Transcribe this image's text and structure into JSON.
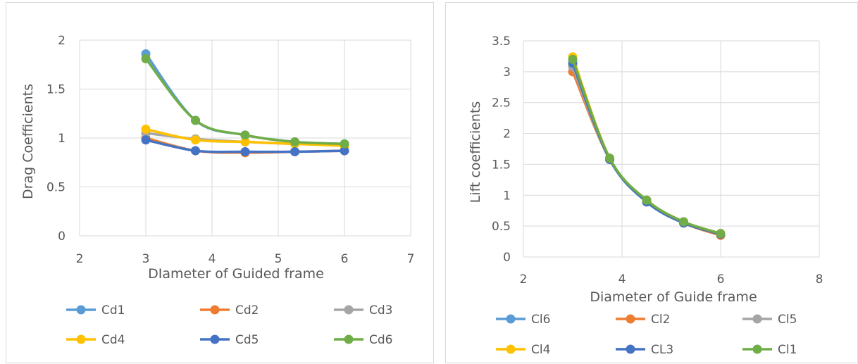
{
  "chart_data": [
    {
      "type": "scatter",
      "title": "",
      "xlabel": "DIameter of  Guided frame",
      "ylabel": "Drag Coefficients",
      "xlim": [
        2,
        7
      ],
      "ylim": [
        0,
        2
      ],
      "xticks": [
        "2",
        "3",
        "4",
        "5",
        "6",
        "7"
      ],
      "yticks": [
        "0",
        "0.5",
        "1",
        "1.5",
        "2"
      ],
      "grid": true,
      "legend_position": "bottom",
      "series": [
        {
          "name": "Cd1",
          "color": "#5B9BD5",
          "x": [
            3,
            3.75,
            4.5,
            5.25,
            6
          ],
          "y": [
            1.86,
            1.18,
            1.03,
            0.96,
            0.94
          ]
        },
        {
          "name": "Cd2",
          "color": "#ED7D31",
          "x": [
            3,
            3.75,
            4.5,
            5.25,
            6
          ],
          "y": [
            1.0,
            0.87,
            0.85,
            0.86,
            0.87
          ]
        },
        {
          "name": "Cd3",
          "color": "#A5A5A5",
          "x": [
            3,
            3.75,
            4.5,
            5.25,
            6
          ],
          "y": [
            1.05,
            0.99,
            0.96,
            0.94,
            0.93
          ]
        },
        {
          "name": "Cd4",
          "color": "#FFC000",
          "x": [
            3,
            3.75,
            4.5,
            5.25,
            6
          ],
          "y": [
            1.09,
            0.98,
            0.96,
            0.94,
            0.92
          ]
        },
        {
          "name": "Cd5",
          "color": "#4472C4",
          "x": [
            3,
            3.75,
            4.5,
            5.25,
            6
          ],
          "y": [
            0.98,
            0.87,
            0.86,
            0.86,
            0.87
          ]
        },
        {
          "name": "Cd6",
          "color": "#70AD47",
          "x": [
            3,
            3.75,
            4.5,
            5.25,
            6
          ],
          "y": [
            1.81,
            1.18,
            1.03,
            0.96,
            0.94
          ]
        }
      ]
    },
    {
      "type": "scatter",
      "title": "",
      "xlabel": "Diameter of Guide frame",
      "ylabel": "Lift coefficients",
      "xlim": [
        2,
        8
      ],
      "ylim": [
        0,
        3.5
      ],
      "xticks": [
        "2",
        "4",
        "6",
        "8"
      ],
      "yticks": [
        "0",
        "0.5",
        "1",
        "1.5",
        "2",
        "2.5",
        "3",
        "3.5"
      ],
      "grid": true,
      "legend_position": "bottom",
      "series": [
        {
          "name": "Cl6",
          "color": "#5B9BD5",
          "x": [
            3,
            3.75,
            4.5,
            5.25,
            6
          ],
          "y": [
            3.1,
            1.58,
            0.9,
            0.56,
            0.37
          ]
        },
        {
          "name": "Cl2",
          "color": "#ED7D31",
          "x": [
            3,
            3.75,
            4.5,
            5.25,
            6
          ],
          "y": [
            3.0,
            1.58,
            0.9,
            0.55,
            0.35
          ]
        },
        {
          "name": "Cl5",
          "color": "#A5A5A5",
          "x": [
            3,
            3.75,
            4.5,
            5.25,
            6
          ],
          "y": [
            3.08,
            1.58,
            0.9,
            0.56,
            0.37
          ]
        },
        {
          "name": "Cl4",
          "color": "#FFC000",
          "x": [
            3,
            3.75,
            4.5,
            5.25,
            6
          ],
          "y": [
            3.24,
            1.6,
            0.92,
            0.57,
            0.38
          ]
        },
        {
          "name": "CL3",
          "color": "#4472C4",
          "x": [
            3,
            3.75,
            4.5,
            5.25,
            6
          ],
          "y": [
            3.14,
            1.58,
            0.89,
            0.55,
            0.37
          ]
        },
        {
          "name": "Cl1",
          "color": "#70AD47",
          "x": [
            3,
            3.75,
            4.5,
            5.25,
            6
          ],
          "y": [
            3.2,
            1.6,
            0.92,
            0.57,
            0.38
          ]
        }
      ]
    }
  ]
}
